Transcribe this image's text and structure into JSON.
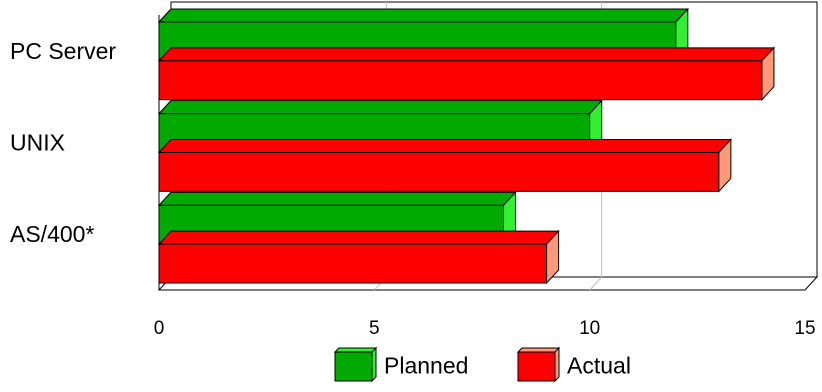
{
  "chart_data": {
    "type": "bar",
    "orientation": "horizontal",
    "style": "3d",
    "categories": [
      "PC Server",
      "UNIX",
      "AS/400*"
    ],
    "series": [
      {
        "name": "Planned",
        "values": [
          12,
          10,
          8
        ],
        "color": "#00aa00",
        "side_color": "#33ee33"
      },
      {
        "name": "Actual",
        "values": [
          14,
          13,
          9
        ],
        "color": "#ff0000",
        "side_color": "#ff9977"
      }
    ],
    "xlim": [
      0,
      15
    ],
    "xticks": [
      "0",
      "5",
      "10",
      "15"
    ],
    "grid": true,
    "legend_position": "bottom",
    "title": "",
    "xlabel": "",
    "ylabel": ""
  }
}
